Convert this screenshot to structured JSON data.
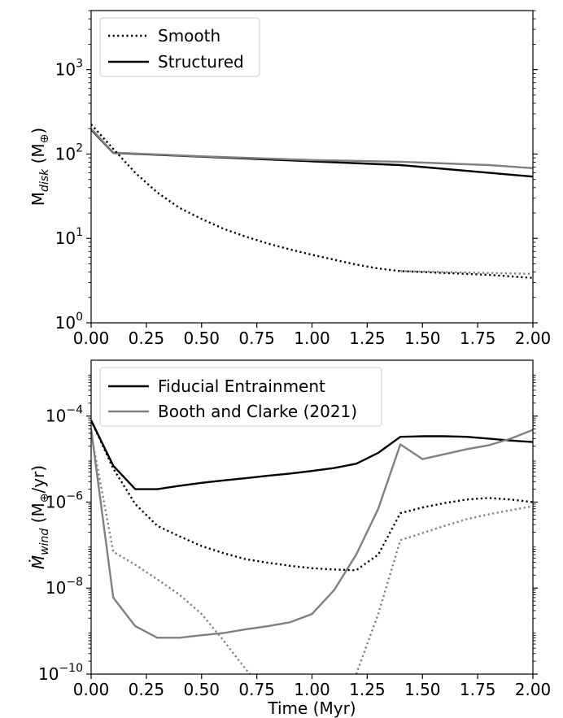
{
  "chart_data": [
    {
      "type": "line",
      "title": "",
      "xlabel": "",
      "ylabel_main": "M",
      "ylabel_sub": "disk",
      "ylabel_unit": "(M",
      "ylabel_unit_sub": "⊕",
      "ylabel_close": ")",
      "xlim": [
        0,
        2
      ],
      "ylim_exp": [
        0,
        3.7
      ],
      "yscale": "log",
      "xticks": [
        0,
        0.25,
        0.5,
        0.75,
        1.0,
        1.25,
        1.5,
        1.75,
        2.0
      ],
      "xtick_labels": [
        "0.00",
        "0.25",
        "0.50",
        "0.75",
        "1.00",
        "1.25",
        "1.50",
        "1.75",
        "2.00"
      ],
      "yticks_exp": [
        0,
        1,
        2,
        3
      ],
      "ytick_base": "10",
      "ytick_exps": [
        "0",
        "1",
        "2",
        "3"
      ],
      "grid": false,
      "legend_position": "top-left",
      "legend": [
        {
          "label": "Smooth",
          "style": "dotted",
          "color": "#000000"
        },
        {
          "label": "Structured",
          "style": "solid",
          "color": "#000000"
        }
      ],
      "series": [
        {
          "group": "Fiducial Entrainment",
          "style": "solid",
          "color": "#000000",
          "x": [
            0,
            0.1,
            0.5,
            1.0,
            1.4,
            2.0
          ],
          "y": [
            195,
            103,
            93,
            82,
            74,
            54
          ]
        },
        {
          "group": "Booth and Clarke (2021)",
          "style": "solid",
          "color": "#808080",
          "x": [
            0,
            0.1,
            0.5,
            1.0,
            1.4,
            1.8,
            2.0
          ],
          "y": [
            200,
            104,
            94,
            85,
            81,
            74,
            68
          ]
        },
        {
          "group": "Fiducial Entrainment",
          "style": "dotted",
          "color": "#000000",
          "x": [
            0,
            0.1,
            0.2,
            0.3,
            0.4,
            0.5,
            0.6,
            0.7,
            0.8,
            0.9,
            1.0,
            1.1,
            1.2,
            1.3,
            1.4,
            1.6,
            1.8,
            2.0
          ],
          "y": [
            225,
            115,
            60,
            35,
            23,
            17,
            13,
            10.5,
            8.7,
            7.4,
            6.4,
            5.6,
            4.9,
            4.4,
            4.1,
            3.9,
            3.7,
            3.4
          ]
        },
        {
          "group": "Booth and Clarke (2021)",
          "style": "dotted",
          "color": "#808080",
          "x": [
            1.4,
            1.6,
            1.8,
            2.0
          ],
          "y": [
            4.1,
            4.0,
            3.9,
            3.8
          ]
        }
      ]
    },
    {
      "type": "line",
      "title": "",
      "xlabel": "Time (Myr)",
      "ylabel_main": "Ṁ",
      "ylabel_sub": "wind",
      "ylabel_unit": "(M",
      "ylabel_unit_sub": "⊕",
      "ylabel_close": "/yr)",
      "xlim": [
        0,
        2
      ],
      "ylim_exp": [
        -10,
        -2.7
      ],
      "yscale": "log",
      "xticks": [
        0,
        0.25,
        0.5,
        0.75,
        1.0,
        1.25,
        1.5,
        1.75,
        2.0
      ],
      "xtick_labels": [
        "0.00",
        "0.25",
        "0.50",
        "0.75",
        "1.00",
        "1.25",
        "1.50",
        "1.75",
        "2.00"
      ],
      "yticks_exp": [
        -10,
        -8,
        -6,
        -4
      ],
      "ytick_base": "10",
      "ytick_exps": [
        "−10",
        "−8",
        "−6",
        "−4"
      ],
      "grid": false,
      "legend_position": "top-left",
      "legend": [
        {
          "label": "Fiducial Entrainment",
          "style": "solid",
          "color": "#000000"
        },
        {
          "label": "Booth and Clarke (2021)",
          "style": "solid",
          "color": "#808080"
        }
      ],
      "series": [
        {
          "group": "Fiducial Entrainment",
          "style": "solid",
          "color": "#000000",
          "x": [
            0,
            0.1,
            0.2,
            0.3,
            0.4,
            0.5,
            0.6,
            0.7,
            0.8,
            0.9,
            1.0,
            1.1,
            1.2,
            1.3,
            1.4,
            1.5,
            1.6,
            1.7,
            1.8,
            1.9,
            2.0
          ],
          "y": [
            8e-05,
            7e-06,
            2e-06,
            2e-06,
            2.4e-06,
            2.8e-06,
            3.2e-06,
            3.6e-06,
            4.1e-06,
            4.6e-06,
            5.3e-06,
            6.2e-06,
            7.8e-06,
            1.4e-05,
            3.3e-05,
            3.4e-05,
            3.4e-05,
            3.3e-05,
            3e-05,
            2.7e-05,
            2.5e-05
          ]
        },
        {
          "group": "Booth and Clarke (2021)",
          "style": "solid",
          "color": "#808080",
          "x": [
            0,
            0.1,
            0.2,
            0.3,
            0.4,
            0.5,
            0.6,
            0.7,
            0.8,
            0.9,
            1.0,
            1.1,
            1.2,
            1.3,
            1.4,
            1.5,
            1.6,
            1.7,
            1.8,
            1.9,
            2.0
          ],
          "y": [
            5e-05,
            6e-09,
            1.3e-09,
            7e-10,
            7e-10,
            8e-10,
            9e-10,
            1.1e-09,
            1.3e-09,
            1.6e-09,
            2.5e-09,
            9e-09,
            6e-08,
            7e-07,
            2.2e-05,
            1e-05,
            1.3e-05,
            1.7e-05,
            2.1e-05,
            3e-05,
            4.8e-05
          ]
        },
        {
          "group": "Fiducial Entrainment",
          "style": "dotted",
          "color": "#000000",
          "x": [
            0,
            0.1,
            0.2,
            0.3,
            0.4,
            0.5,
            0.6,
            0.7,
            0.8,
            0.9,
            1.0,
            1.1,
            1.2,
            1.3,
            1.4,
            1.5,
            1.6,
            1.7,
            1.8,
            1.9,
            2.0
          ],
          "y": [
            8e-05,
            6e-06,
            9e-07,
            2.8e-07,
            1.6e-07,
            9.5e-08,
            6.5e-08,
            4.7e-08,
            3.9e-08,
            3.3e-08,
            2.9e-08,
            2.7e-08,
            2.6e-08,
            6e-08,
            5.5e-07,
            7.5e-07,
            9.5e-07,
            1.15e-06,
            1.25e-06,
            1.15e-06,
            1e-06
          ]
        },
        {
          "group": "Booth and Clarke (2021)",
          "style": "dotted",
          "color": "#808080",
          "x": [
            0,
            0.1,
            0.2,
            0.3,
            0.4,
            0.5,
            0.6,
            0.7,
            0.72
          ],
          "y": [
            4e-05,
            7e-08,
            3.5e-08,
            1.6e-08,
            7e-09,
            2.5e-09,
            6e-10,
            1.3e-10,
            1e-10
          ]
        },
        {
          "group": "Booth and Clarke (2021)",
          "style": "dotted",
          "color": "#808080",
          "x": [
            1.2,
            1.3,
            1.4,
            1.5,
            1.6,
            1.7,
            1.8,
            1.9,
            2.0
          ],
          "y": [
            1e-10,
            2.5e-09,
            1.3e-07,
            1.9e-07,
            2.8e-07,
            4e-07,
            5.2e-07,
            6.5e-07,
            8e-07
          ]
        }
      ]
    }
  ]
}
